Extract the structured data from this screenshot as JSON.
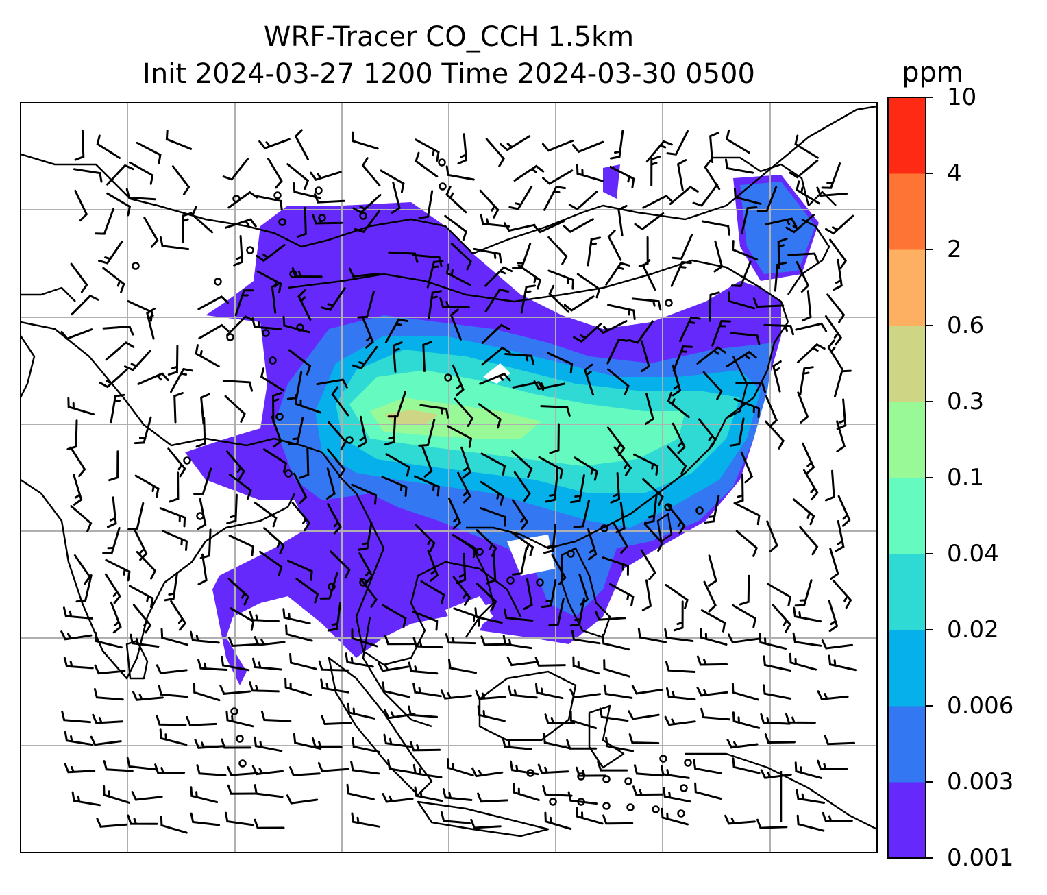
{
  "figure": {
    "title_line1": "WRF-Tracer CO_CCH 1.5km",
    "title_line2": "Init 2024-03-27 1200 Time 2024-03-30 0500"
  },
  "colorbar": {
    "unit": "ppm",
    "levels": [
      "0.001",
      "0.003",
      "0.006",
      "0.02",
      "0.04",
      "0.1",
      "0.3",
      "0.6",
      "2",
      "4",
      "10"
    ],
    "colors": [
      "#6629fb",
      "#3377f3",
      "#06b0ea",
      "#2fdad5",
      "#65fabf",
      "#99f997",
      "#ced585",
      "#fdb062",
      "#fe7434",
      "#ff2a14"
    ]
  },
  "map": {
    "coastline_color": "#000000",
    "gridline_color": "#b0b0b0",
    "vector_field": "wind barbs",
    "station_markers": "open circles (calm)"
  }
}
